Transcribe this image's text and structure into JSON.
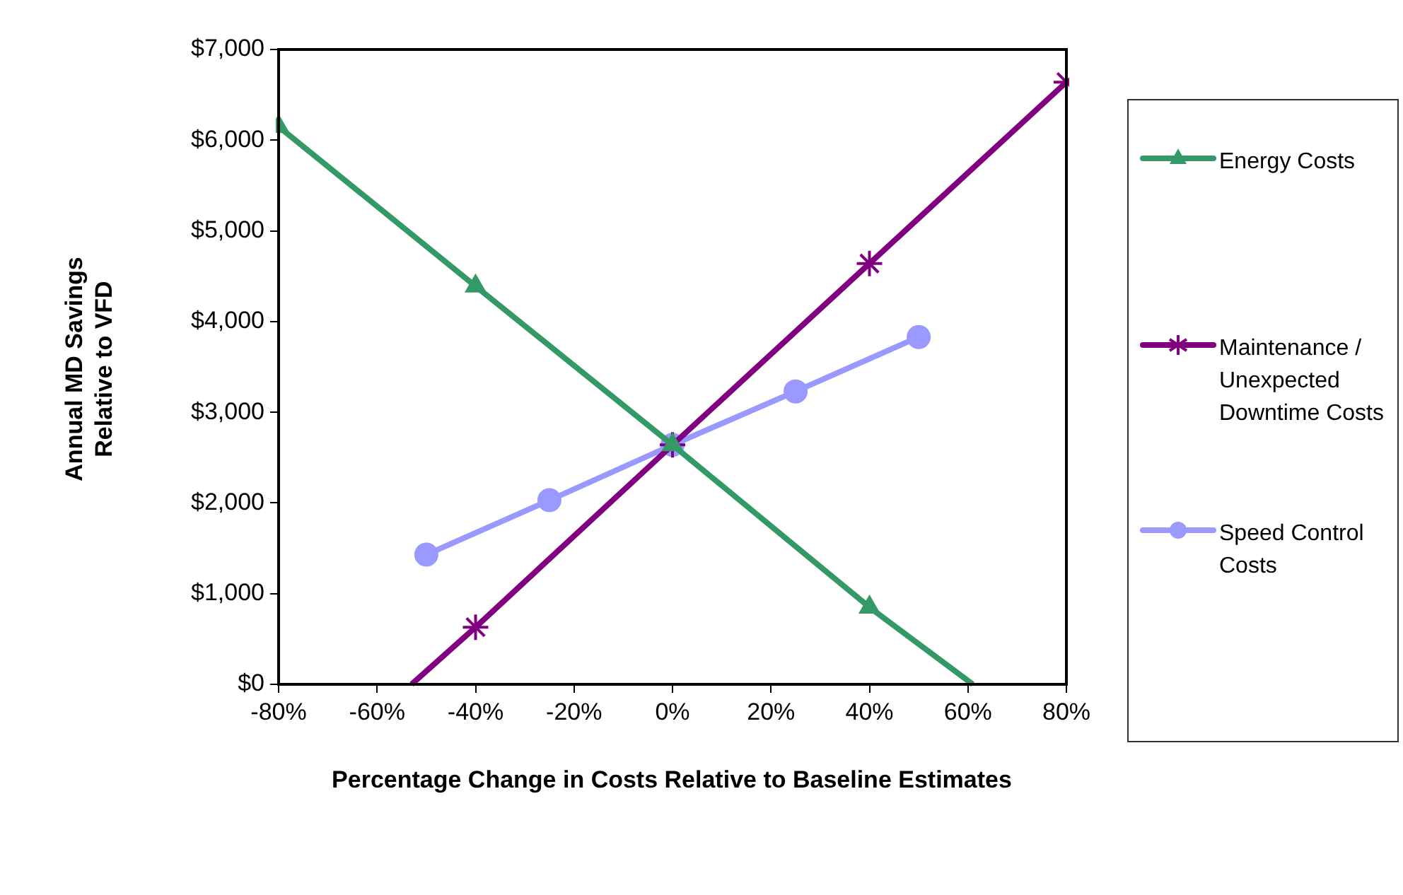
{
  "chart_data": {
    "type": "line",
    "xlabel": "Percentage Change in Costs Relative to Baseline Estimates",
    "ylabel": "Annual MD Savings Relative to VFD",
    "xlim": [
      -80,
      80
    ],
    "xticks": [
      {
        "value": -80,
        "label": "-80%"
      },
      {
        "value": -60,
        "label": "-60%"
      },
      {
        "value": -40,
        "label": "-40%"
      },
      {
        "value": -20,
        "label": "-20%"
      },
      {
        "value": 0,
        "label": "0%"
      },
      {
        "value": 20,
        "label": "20%"
      },
      {
        "value": 40,
        "label": "40%"
      },
      {
        "value": 60,
        "label": "60%"
      },
      {
        "value": 80,
        "label": "80%"
      }
    ],
    "ylim": [
      0,
      7000
    ],
    "yticks": [
      {
        "value": 0,
        "label": "$0"
      },
      {
        "value": 1000,
        "label": "$1,000"
      },
      {
        "value": 2000,
        "label": "$2,000"
      },
      {
        "value": 3000,
        "label": "$3,000"
      },
      {
        "value": 4000,
        "label": "$4,000"
      },
      {
        "value": 5000,
        "label": "$5,000"
      },
      {
        "value": 6000,
        "label": "$6,000"
      },
      {
        "value": 7000,
        "label": "$7,000"
      }
    ],
    "grid": false,
    "legend": "right",
    "line_style": "solid",
    "series": [
      {
        "name": "Energy Costs",
        "color": "#339966",
        "marker": "triangle",
        "x": [
          -80,
          -40,
          0,
          40,
          61
        ],
        "values": [
          6150,
          4390,
          2640,
          850,
          0
        ]
      },
      {
        "name": "Maintenance / Unexpected Downtime Costs",
        "color": "#800080",
        "marker": "cross",
        "x": [
          -53,
          -40,
          0,
          40,
          80
        ],
        "values": [
          0,
          630,
          2640,
          4640,
          6640
        ]
      },
      {
        "name": "Speed Control Costs",
        "color": "#9999ff",
        "marker": "circle",
        "x": [
          -50,
          -25,
          0,
          25,
          50
        ],
        "values": [
          1430,
          2030,
          2640,
          3230,
          3830
        ]
      }
    ]
  }
}
